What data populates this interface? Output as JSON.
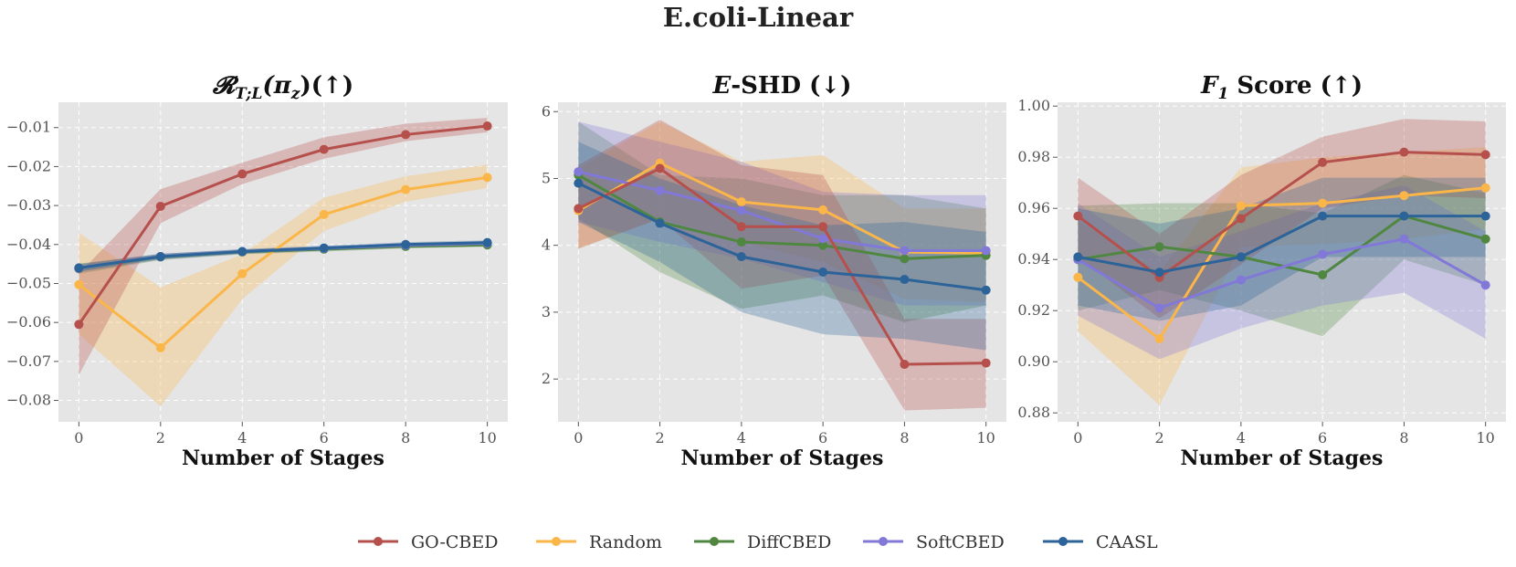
{
  "suptitle": "E.coli-Linear",
  "colors": {
    "GO-CBED": "#b5504c",
    "Random": "#fbb649",
    "DiffCBED": "#4f8741",
    "SoftCBED": "#8178d8",
    "CAASL": "#2c6399",
    "panel_bg": "#e5e5e5",
    "grid": "#ffffff"
  },
  "legend": [
    "GO-CBED",
    "Random",
    "DiffCBED",
    "SoftCBED",
    "CAASL"
  ],
  "chart_data": [
    {
      "type": "line",
      "title": "𝓡T;L(πz)(↑)",
      "title_parts": {
        "main": "𝓡",
        "sub": "T;L",
        "rest": "(π",
        "sub2": "z",
        "end": ")(↑)"
      },
      "xlabel": "Number of Stages",
      "ylabel": "",
      "x": [
        0,
        2,
        4,
        6,
        8,
        10
      ],
      "xlim": [
        -0.5,
        10.5
      ],
      "ylim": [
        -0.0855,
        -0.0035
      ],
      "yticks": [
        -0.08,
        -0.07,
        -0.06,
        -0.05,
        -0.04,
        -0.03,
        -0.02,
        -0.01
      ],
      "ytick_labels": [
        "−0.08",
        "−0.07",
        "−0.06",
        "−0.05",
        "−0.04",
        "−0.03",
        "−0.02",
        "−0.01"
      ],
      "xticks": [
        0,
        2,
        4,
        6,
        8,
        10
      ],
      "series": [
        {
          "name": "Random",
          "values": [
            -0.0503,
            -0.0665,
            -0.0475,
            -0.0323,
            -0.0259,
            -0.0228
          ],
          "lower": [
            -0.063,
            -0.0815,
            -0.054,
            -0.0365,
            -0.029,
            -0.0255
          ],
          "upper": [
            -0.037,
            -0.051,
            -0.0425,
            -0.028,
            -0.0225,
            -0.0195
          ]
        },
        {
          "name": "DiffCBED",
          "values": [
            -0.0462,
            -0.0432,
            -0.0419,
            -0.0412,
            -0.0405,
            -0.0401
          ],
          "lower": [
            -0.0475,
            -0.044,
            -0.0425,
            -0.0418,
            -0.041,
            -0.0406
          ],
          "upper": [
            -0.0449,
            -0.0424,
            -0.0413,
            -0.0406,
            -0.04,
            -0.0396
          ]
        },
        {
          "name": "SoftCBED",
          "values": [
            -0.0461,
            -0.0431,
            -0.0418,
            -0.041,
            -0.0402,
            -0.0397
          ],
          "lower": [
            -0.047,
            -0.0438,
            -0.0424,
            -0.0416,
            -0.0408,
            -0.0402
          ],
          "upper": [
            -0.0452,
            -0.0424,
            -0.0412,
            -0.0404,
            -0.0396,
            -0.0392
          ]
        },
        {
          "name": "GO-CBED",
          "values": [
            -0.0605,
            -0.0302,
            -0.0219,
            -0.0156,
            -0.0118,
            -0.0096
          ],
          "lower": [
            -0.0735,
            -0.0345,
            -0.0245,
            -0.018,
            -0.0135,
            -0.0112
          ],
          "upper": [
            -0.0475,
            -0.0258,
            -0.019,
            -0.0125,
            -0.009,
            -0.0075
          ]
        },
        {
          "name": "CAASL",
          "values": [
            -0.046,
            -0.0431,
            -0.0418,
            -0.0409,
            -0.04,
            -0.0395
          ],
          "lower": [
            -0.047,
            -0.0438,
            -0.0424,
            -0.0415,
            -0.0406,
            -0.0401
          ],
          "upper": [
            -0.045,
            -0.0424,
            -0.0412,
            -0.0403,
            -0.0394,
            -0.0389
          ]
        }
      ]
    },
    {
      "type": "line",
      "title": "E-SHD (↓)",
      "title_parts": {
        "main": "E",
        "rest": "-SHD (↓)"
      },
      "xlabel": "Number of Stages",
      "ylabel": "",
      "x": [
        0,
        2,
        4,
        6,
        8,
        10
      ],
      "xlim": [
        -0.5,
        10.5
      ],
      "ylim": [
        1.36,
        6.14
      ],
      "yticks": [
        2,
        3,
        4,
        5,
        6
      ],
      "ytick_labels": [
        "2",
        "3",
        "4",
        "5",
        "6"
      ],
      "xticks": [
        0,
        2,
        4,
        6,
        8,
        10
      ],
      "series": [
        {
          "name": "Random",
          "values": [
            4.52,
            5.23,
            4.65,
            4.53,
            3.9,
            3.88
          ],
          "lower": [
            3.95,
            4.4,
            4.05,
            3.75,
            3.2,
            3.15
          ],
          "upper": [
            5.15,
            5.85,
            5.25,
            5.35,
            4.55,
            4.55
          ]
        },
        {
          "name": "DiffCBED",
          "values": [
            5.05,
            4.35,
            4.05,
            4.0,
            3.8,
            3.85
          ],
          "lower": [
            4.4,
            3.6,
            3.05,
            3.25,
            2.85,
            3.1
          ],
          "upper": [
            5.85,
            5.05,
            5.0,
            4.75,
            4.75,
            4.55
          ]
        },
        {
          "name": "SoftCBED",
          "values": [
            5.1,
            4.82,
            4.52,
            4.1,
            3.92,
            3.92
          ],
          "lower": [
            4.35,
            4.05,
            3.8,
            3.45,
            3.1,
            3.1
          ],
          "upper": [
            5.85,
            5.55,
            5.25,
            4.8,
            4.75,
            4.75
          ]
        },
        {
          "name": "GO-CBED",
          "values": [
            4.55,
            5.15,
            4.28,
            4.28,
            2.22,
            2.24
          ],
          "lower": [
            3.95,
            4.4,
            3.35,
            3.55,
            1.53,
            1.57
          ],
          "upper": [
            5.2,
            5.88,
            5.2,
            5.05,
            2.9,
            2.9
          ]
        },
        {
          "name": "CAASL",
          "values": [
            4.93,
            4.33,
            3.83,
            3.6,
            3.49,
            3.33
          ],
          "lower": [
            4.35,
            3.75,
            3.0,
            2.67,
            2.6,
            2.43
          ],
          "upper": [
            5.55,
            5.0,
            4.6,
            4.3,
            4.35,
            4.2
          ]
        }
      ]
    },
    {
      "type": "line",
      "title": "F1 Score (↑)",
      "title_parts": {
        "main": "F",
        "sub": "1",
        "rest": " Score (↑)"
      },
      "xlabel": "Number of Stages",
      "ylabel": "",
      "x": [
        0,
        2,
        4,
        6,
        8,
        10
      ],
      "xlim": [
        -0.5,
        10.5
      ],
      "ylim": [
        0.8765,
        1.0015
      ],
      "yticks": [
        0.88,
        0.9,
        0.92,
        0.94,
        0.96,
        0.98,
        1.0
      ],
      "ytick_labels": [
        "0.88",
        "0.90",
        "0.92",
        "0.94",
        "0.96",
        "0.98",
        "1.00"
      ],
      "xticks": [
        0,
        2,
        4,
        6,
        8,
        10
      ],
      "series": [
        {
          "name": "Random",
          "values": [
            0.933,
            0.909,
            0.961,
            0.962,
            0.965,
            0.968
          ],
          "lower": [
            0.912,
            0.883,
            0.945,
            0.946,
            0.948,
            0.952
          ],
          "upper": [
            0.955,
            0.935,
            0.976,
            0.98,
            0.982,
            0.984
          ]
        },
        {
          "name": "DiffCBED",
          "values": [
            0.94,
            0.945,
            0.941,
            0.934,
            0.957,
            0.948
          ],
          "lower": [
            0.92,
            0.928,
            0.92,
            0.91,
            0.94,
            0.93
          ],
          "upper": [
            0.961,
            0.962,
            0.962,
            0.958,
            0.973,
            0.966
          ]
        },
        {
          "name": "SoftCBED",
          "values": [
            0.94,
            0.921,
            0.932,
            0.942,
            0.948,
            0.93
          ],
          "lower": [
            0.918,
            0.901,
            0.913,
            0.922,
            0.927,
            0.909
          ],
          "upper": [
            0.962,
            0.941,
            0.951,
            0.962,
            0.969,
            0.951
          ]
        },
        {
          "name": "GO-CBED",
          "values": [
            0.957,
            0.933,
            0.956,
            0.978,
            0.982,
            0.981
          ],
          "lower": [
            0.941,
            0.917,
            0.938,
            0.96,
            0.965,
            0.964
          ],
          "upper": [
            0.972,
            0.95,
            0.973,
            0.988,
            0.995,
            0.994
          ]
        },
        {
          "name": "CAASL",
          "values": [
            0.941,
            0.935,
            0.941,
            0.957,
            0.957,
            0.957
          ],
          "lower": [
            0.922,
            0.916,
            0.922,
            0.941,
            0.941,
            0.941
          ],
          "upper": [
            0.96,
            0.954,
            0.96,
            0.972,
            0.972,
            0.972
          ]
        }
      ]
    }
  ]
}
